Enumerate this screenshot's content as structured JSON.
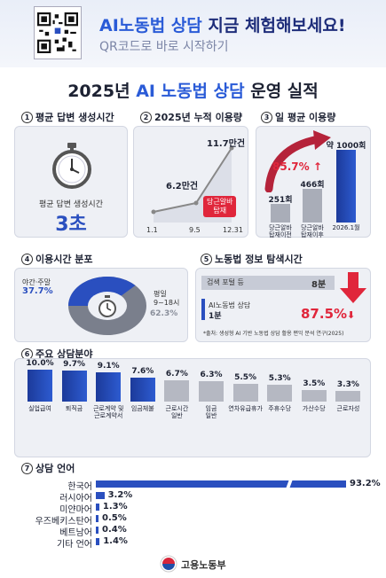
{
  "header": {
    "title_highlight": "AI노동법 상담",
    "title_rest": " 지금 체험해보세요!",
    "subtitle": "QR코드로 바로 시작하기"
  },
  "main_title": {
    "year": "2025년",
    "highlight": "AI 노동법 상담",
    "rest": "운영 실적"
  },
  "section1": {
    "num": "1",
    "title": "평균 답변 생성시간",
    "caption": "평균 답변 생성시간",
    "value": "3초"
  },
  "section2": {
    "num": "2",
    "title": "2025년 누적 이용량",
    "points": [
      {
        "label": "1.1",
        "value_label": ""
      },
      {
        "label": "9.5",
        "value_label": "6.2만건"
      },
      {
        "label": "12.31",
        "value_label": "11.7만건"
      }
    ],
    "annotation": "당근알바\n탑재"
  },
  "section3": {
    "num": "3",
    "title": "일 평균 이용량",
    "bars": [
      {
        "value_label": "251회",
        "label": "당근알바\n탑재이전",
        "value": 251
      },
      {
        "value_label": "466회",
        "label": "당근알바\n탑재이후",
        "value": 466
      },
      {
        "value_label": "약 1000회",
        "label": "2026.1월",
        "value": 1000
      }
    ],
    "growth": "85.7%"
  },
  "section4": {
    "num": "4",
    "title": "이용시간 분포",
    "night_label": "야간·주말",
    "night_value": "37.7%",
    "day_label": "평일\n9~18시",
    "day_value": "62.3%",
    "night_pct": 37.7
  },
  "section5": {
    "num": "5",
    "title": "노동법 정보 탐색시간",
    "portal_label": "검색 포털 등",
    "portal_value": "8분",
    "ai_label": "AI노동법 상담",
    "ai_value": "1분",
    "reduction": "87.5%",
    "source": "*출처: 생성형 AI 기반 노동법 상담 활용 편익 분석 연구(2025)"
  },
  "section6": {
    "num": "6",
    "title": "주요 상담분야",
    "bars": [
      {
        "label": "실업급여",
        "value": 10.0,
        "value_label": "10.0%"
      },
      {
        "label": "퇴직금",
        "value": 9.7,
        "value_label": "9.7%"
      },
      {
        "label": "근로계약 및\n근로계약서",
        "value": 9.1,
        "value_label": "9.1%"
      },
      {
        "label": "임금체불",
        "value": 7.6,
        "value_label": "7.6%"
      },
      {
        "label": "근로시간\n일반",
        "value": 6.7,
        "value_label": "6.7%"
      },
      {
        "label": "임금\n일반",
        "value": 6.3,
        "value_label": "6.3%"
      },
      {
        "label": "연차유급휴가",
        "value": 5.5,
        "value_label": "5.5%"
      },
      {
        "label": "주휴수당",
        "value": 5.3,
        "value_label": "5.3%"
      },
      {
        "label": "가산수당",
        "value": 3.5,
        "value_label": "3.5%"
      },
      {
        "label": "근로자성",
        "value": 3.3,
        "value_label": "3.3%"
      }
    ]
  },
  "section7": {
    "num": "7",
    "title": "상담 언어",
    "langs": [
      {
        "name": "한국어",
        "value": 93.2,
        "value_label": "93.2%"
      },
      {
        "name": "러시아어",
        "value": 3.2,
        "value_label": "3.2%"
      },
      {
        "name": "미얀마어",
        "value": 1.3,
        "value_label": "1.3%"
      },
      {
        "name": "우즈베키스탄어",
        "value": 0.5,
        "value_label": "0.5%"
      },
      {
        "name": "베트남어",
        "value": 0.4,
        "value_label": "0.4%"
      },
      {
        "name": "기타 언어",
        "value": 1.4,
        "value_label": "1.4%"
      }
    ]
  },
  "footer": {
    "ministry": "고용노동부"
  },
  "colors": {
    "primary": "#2a4fbf",
    "accent": "#e0263b",
    "navy": "#1e2d7a"
  }
}
